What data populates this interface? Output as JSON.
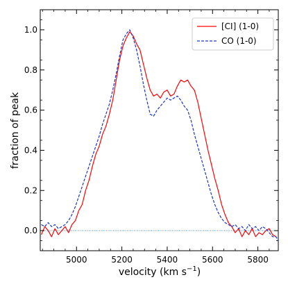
{
  "chart_data": {
    "type": "line",
    "title": "",
    "xlabel": "velocity (km s",
    "xlabel_sup": "−1",
    "xlabel_close": ")",
    "ylabel": "fraction of peak",
    "xlim": [
      4840,
      5890
    ],
    "ylim": [
      -0.1,
      1.1
    ],
    "x_ticks": [
      5000,
      5200,
      5400,
      5600,
      5800
    ],
    "y_ticks": [
      0.0,
      0.2,
      0.4,
      0.6,
      0.8,
      1.0
    ],
    "x_tick_labels": [
      "5000",
      "5200",
      "5400",
      "5600",
      "5800"
    ],
    "y_tick_labels": [
      "0.0",
      "0.2",
      "0.4",
      "0.6",
      "0.8",
      "1.0"
    ],
    "grid": false,
    "legend_position": "top-right",
    "baseline": {
      "y": 0.0,
      "x_range": [
        4840,
        5890
      ],
      "color": "#1f77b4",
      "style": "dotted"
    },
    "series": [
      {
        "name": "[CI] (1-0)",
        "color": "#ff0000",
        "style": "solid",
        "x": [
          4845,
          4860,
          4875,
          4890,
          4905,
          4920,
          4935,
          4950,
          4965,
          4980,
          4995,
          5010,
          5025,
          5040,
          5055,
          5070,
          5085,
          5100,
          5115,
          5130,
          5145,
          5160,
          5175,
          5190,
          5205,
          5220,
          5235,
          5250,
          5265,
          5280,
          5295,
          5310,
          5325,
          5340,
          5355,
          5370,
          5385,
          5400,
          5415,
          5430,
          5445,
          5460,
          5475,
          5490,
          5505,
          5520,
          5535,
          5550,
          5565,
          5580,
          5595,
          5610,
          5625,
          5640,
          5655,
          5670,
          5685,
          5700,
          5715,
          5730,
          5745,
          5760,
          5775,
          5790,
          5805,
          5820,
          5835,
          5850,
          5865,
          5880
        ],
        "y": [
          -0.02,
          0.02,
          0.0,
          -0.03,
          0.01,
          -0.02,
          0.0,
          0.02,
          -0.01,
          0.03,
          0.05,
          0.1,
          0.13,
          0.2,
          0.25,
          0.32,
          0.38,
          0.42,
          0.48,
          0.52,
          0.58,
          0.65,
          0.75,
          0.85,
          0.92,
          0.96,
          0.99,
          0.97,
          0.93,
          0.9,
          0.83,
          0.76,
          0.7,
          0.67,
          0.68,
          0.66,
          0.69,
          0.7,
          0.67,
          0.68,
          0.72,
          0.75,
          0.74,
          0.75,
          0.72,
          0.7,
          0.64,
          0.56,
          0.48,
          0.4,
          0.33,
          0.26,
          0.2,
          0.13,
          0.08,
          0.04,
          0.02,
          -0.01,
          0.01,
          -0.03,
          0.0,
          -0.02,
          0.01,
          -0.03,
          -0.01,
          -0.02,
          0.0,
          0.01,
          -0.02,
          -0.03
        ]
      },
      {
        "name": "CO (1-0)",
        "color": "#1a33cc",
        "style": "dashed",
        "x": [
          4845,
          4860,
          4875,
          4890,
          4905,
          4920,
          4935,
          4950,
          4965,
          4980,
          4995,
          5010,
          5025,
          5040,
          5055,
          5070,
          5085,
          5100,
          5115,
          5130,
          5145,
          5160,
          5175,
          5190,
          5205,
          5220,
          5235,
          5250,
          5265,
          5280,
          5295,
          5310,
          5325,
          5340,
          5355,
          5370,
          5385,
          5400,
          5415,
          5430,
          5445,
          5460,
          5475,
          5490,
          5505,
          5520,
          5535,
          5550,
          5565,
          5580,
          5595,
          5610,
          5625,
          5640,
          5655,
          5670,
          5685,
          5700,
          5715,
          5730,
          5745,
          5760,
          5775,
          5790,
          5805,
          5820,
          5835,
          5850,
          5865,
          5880,
          5890
        ],
        "y": [
          0.03,
          0.02,
          0.04,
          0.02,
          0.03,
          0.01,
          0.02,
          0.03,
          0.05,
          0.08,
          0.12,
          0.17,
          0.22,
          0.27,
          0.32,
          0.37,
          0.42,
          0.47,
          0.53,
          0.58,
          0.63,
          0.7,
          0.78,
          0.87,
          0.95,
          0.98,
          1.0,
          0.96,
          0.9,
          0.82,
          0.73,
          0.65,
          0.58,
          0.57,
          0.6,
          0.62,
          0.64,
          0.66,
          0.65,
          0.66,
          0.67,
          0.65,
          0.62,
          0.6,
          0.55,
          0.48,
          0.42,
          0.36,
          0.3,
          0.24,
          0.18,
          0.13,
          0.09,
          0.06,
          0.04,
          0.03,
          0.02,
          0.03,
          0.01,
          0.02,
          0.0,
          0.03,
          0.01,
          0.02,
          0.0,
          0.02,
          0.01,
          -0.01,
          -0.03,
          -0.03,
          -0.05
        ]
      }
    ]
  }
}
